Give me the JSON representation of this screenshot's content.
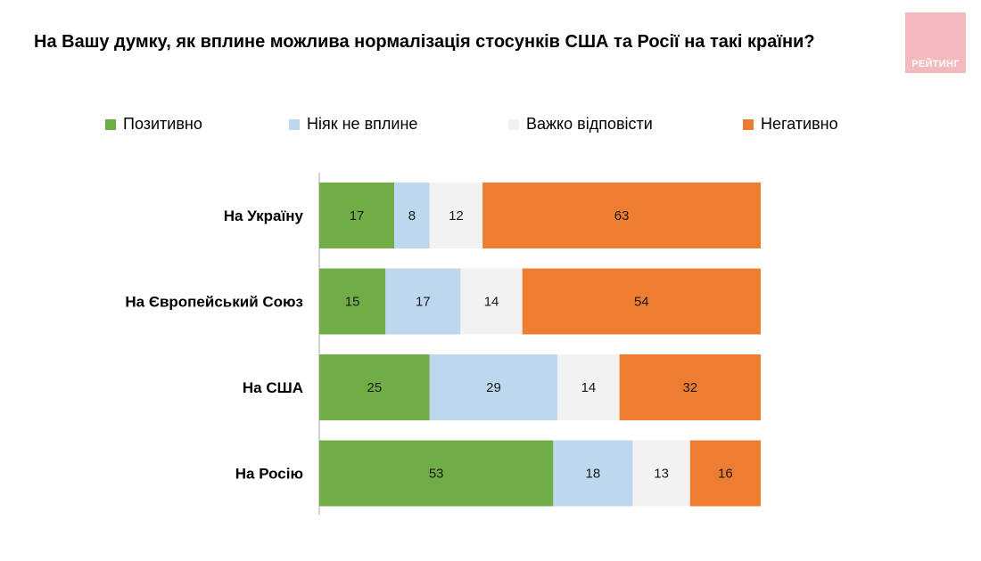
{
  "title": "На Вашу думку, як вплине можлива нормалізація стосунків США та Росії на такі країни?",
  "logo": {
    "text": "РЕЙТИНГ",
    "color": "#f3b9bd"
  },
  "chart_data": {
    "type": "bar",
    "orientation": "horizontal",
    "stacked": true,
    "categories": [
      "На Україну",
      "На Європейський Союз",
      "На США",
      "На Росію"
    ],
    "series": [
      {
        "name": "Позитивно",
        "color": "#70ad47",
        "values": [
          17,
          15,
          25,
          53
        ]
      },
      {
        "name": "Ніяк не вплине",
        "color": "#bdd7ee",
        "values": [
          8,
          17,
          29,
          18
        ]
      },
      {
        "name": "Важко відповісти",
        "color": "#f2f2f2",
        "values": [
          12,
          14,
          14,
          13
        ]
      },
      {
        "name": "Негативно",
        "color": "#ed7d31",
        "values": [
          63,
          54,
          32,
          16
        ]
      }
    ],
    "xlim": [
      0,
      100
    ],
    "legend": "top",
    "grid": false
  }
}
